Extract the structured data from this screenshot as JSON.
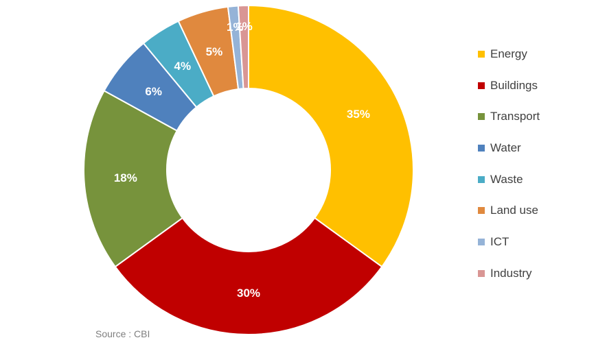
{
  "chart_data": {
    "type": "pie",
    "donut": true,
    "slices": [
      {
        "name": "Energy",
        "value": 35,
        "label": "35%",
        "color": "#FFC000"
      },
      {
        "name": "Buildings",
        "value": 30,
        "label": "30%",
        "color": "#C00000"
      },
      {
        "name": "Transport",
        "value": 18,
        "label": "18%",
        "color": "#77933C"
      },
      {
        "name": "Water",
        "value": 6,
        "label": "6%",
        "color": "#4F81BD"
      },
      {
        "name": "Waste",
        "value": 4,
        "label": "4%",
        "color": "#4BACC6"
      },
      {
        "name": "Land use",
        "value": 5,
        "label": "5%",
        "color": "#E0893E"
      },
      {
        "name": "ICT",
        "value": 1,
        "label": "1%",
        "color": "#95B3D7"
      },
      {
        "name": "Industry",
        "value": 1,
        "label": "1%",
        "color": "#D99694"
      }
    ],
    "legend_position": "right"
  },
  "source": "Source : CBI"
}
